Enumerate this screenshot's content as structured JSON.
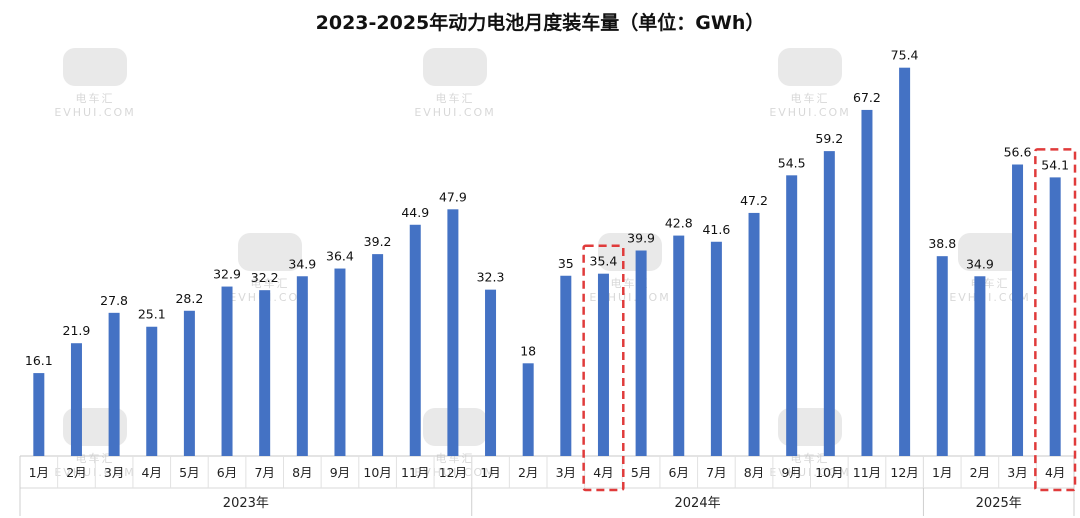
{
  "chart_data": {
    "type": "bar",
    "title": "2023-2025年动力电池月度装车量（单位：GWh）",
    "categories": [
      "1月",
      "2月",
      "3月",
      "4月",
      "5月",
      "6月",
      "7月",
      "8月",
      "9月",
      "10月",
      "11月",
      "12月",
      "1月",
      "2月",
      "3月",
      "4月",
      "5月",
      "6月",
      "7月",
      "8月",
      "9月",
      "10月",
      "11月",
      "12月",
      "1月",
      "2月",
      "3月",
      "4月"
    ],
    "values": [
      16.1,
      21.9,
      27.8,
      25.1,
      28.2,
      32.9,
      32.2,
      34.9,
      36.4,
      39.2,
      44.9,
      47.9,
      32.3,
      18,
      35,
      35.4,
      39.9,
      42.8,
      41.6,
      47.2,
      54.5,
      59.2,
      67.2,
      75.4,
      38.8,
      34.9,
      56.6,
      54.1
    ],
    "groups": [
      {
        "label": "2023年",
        "count": 12
      },
      {
        "label": "2024年",
        "count": 12
      },
      {
        "label": "2025年",
        "count": 4
      }
    ],
    "highlighted_indices": [
      15,
      27
    ],
    "ylim": [
      0,
      80
    ],
    "bar_color": "#4472C4",
    "highlight_color": "#E03B3B",
    "grid": false,
    "legend": "none"
  },
  "watermark": {
    "text": "EVHUI.COM",
    "brand": "电车汇"
  }
}
